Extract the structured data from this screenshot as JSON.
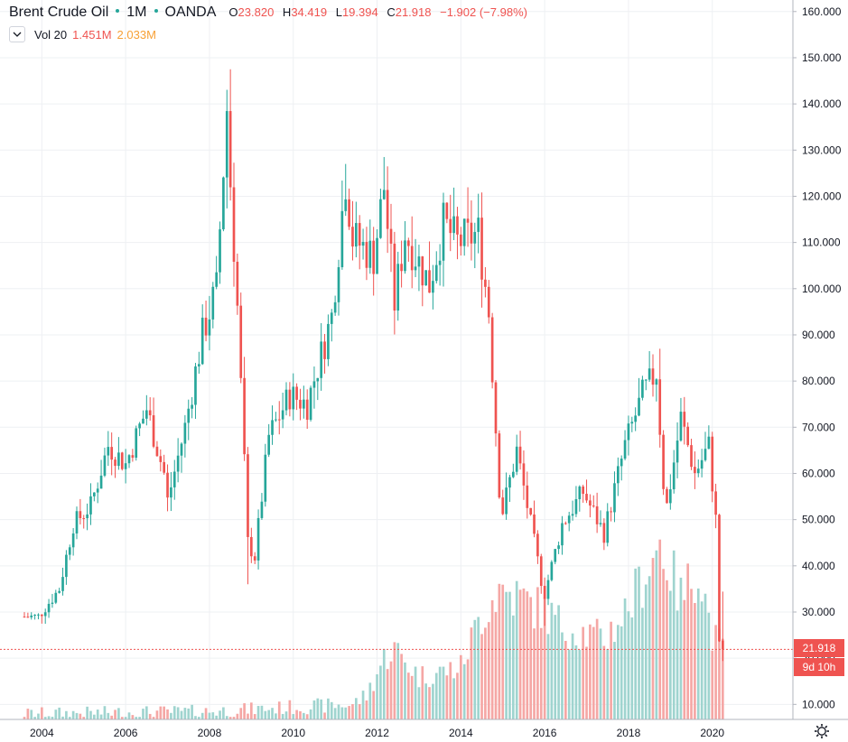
{
  "header": {
    "symbol": "Brent Crude Oil",
    "interval": "1M",
    "exchange": "OANDA",
    "o_key": "O",
    "o_val": "23.820",
    "h_key": "H",
    "h_val": "34.419",
    "l_key": "L",
    "l_val": "19.394",
    "c_key": "C",
    "c_val": "21.918",
    "change": "−1.902 (−7.98%)",
    "vol_label": "Vol 20",
    "vol_a": "1.451M",
    "vol_b": "2.033M"
  },
  "price_badge": {
    "price": "21.918",
    "countdown": "9d 10h"
  },
  "icons": [
    "chevron-down-icon",
    "gear-icon"
  ],
  "colors": {
    "up": "#26a69a",
    "down": "#ef5350",
    "vol_up": "#9fd4cf",
    "vol_down": "#f5a7a5",
    "grid": "#eef0f3"
  },
  "chart_data": {
    "type": "candlestick",
    "title": "Brent Crude Oil",
    "y_axis_ticks": [
      "10.000",
      "20.000",
      "30.000",
      "40.000",
      "50.000",
      "60.000",
      "70.000",
      "80.000",
      "90.000",
      "100.000",
      "110.000",
      "120.000",
      "130.000",
      "140.000",
      "150.000",
      "160.000"
    ],
    "x_axis_ticks": [
      "2004",
      "2006",
      "2008",
      "2010",
      "2012",
      "2014",
      "2016",
      "2018",
      "2020"
    ],
    "ylim": [
      7,
      162
    ],
    "last_close": 21.918,
    "last_candle": {
      "open": 23.82,
      "high": 34.419,
      "low": 19.394,
      "close": 21.918,
      "change": -1.902,
      "change_pct": -7.98
    },
    "monthly_close_anchors": [
      [
        "2003-08",
        29
      ],
      [
        "2003-12",
        29
      ],
      [
        "2004-06",
        35
      ],
      [
        "2004-10",
        49
      ],
      [
        "2005-03",
        53
      ],
      [
        "2005-08",
        66
      ],
      [
        "2006-01",
        62
      ],
      [
        "2006-07",
        74
      ],
      [
        "2006-12",
        60
      ],
      [
        "2007-01",
        54
      ],
      [
        "2007-06",
        70
      ],
      [
        "2007-11",
        90
      ],
      [
        "2008-03",
        100
      ],
      [
        "2008-06",
        139
      ],
      [
        "2008-07",
        123
      ],
      [
        "2008-09",
        96
      ],
      [
        "2008-12",
        45
      ],
      [
        "2009-02",
        42
      ],
      [
        "2009-06",
        68
      ],
      [
        "2009-12",
        77
      ],
      [
        "2010-05",
        75
      ],
      [
        "2010-12",
        94
      ],
      [
        "2011-04",
        124
      ],
      [
        "2011-06",
        111
      ],
      [
        "2011-12",
        107
      ],
      [
        "2012-03",
        122
      ],
      [
        "2012-06",
        97
      ],
      [
        "2012-09",
        112
      ],
      [
        "2013-04",
        101
      ],
      [
        "2013-08",
        114
      ],
      [
        "2013-12",
        110
      ],
      [
        "2014-06",
        112
      ],
      [
        "2014-09",
        95
      ],
      [
        "2014-12",
        57
      ],
      [
        "2015-01",
        52
      ],
      [
        "2015-05",
        65
      ],
      [
        "2015-08",
        53
      ],
      [
        "2015-12",
        37
      ],
      [
        "2016-01",
        34
      ],
      [
        "2016-06",
        49
      ],
      [
        "2016-12",
        56
      ],
      [
        "2017-06",
        47
      ],
      [
        "2017-12",
        66
      ],
      [
        "2018-05",
        77
      ],
      [
        "2018-09",
        82
      ],
      [
        "2018-11",
        58
      ],
      [
        "2018-12",
        53
      ],
      [
        "2019-04",
        72
      ],
      [
        "2019-08",
        60
      ],
      [
        "2019-12",
        66
      ],
      [
        "2020-01",
        58
      ],
      [
        "2020-02",
        50
      ],
      [
        "2020-03",
        23.82
      ],
      [
        "2020-04",
        21.918
      ]
    ],
    "highlights": [
      [
        "2008-07",
        147.5
      ],
      [
        "2008-12",
        36
      ],
      [
        "2011-04",
        127
      ],
      [
        "2012-03",
        128.5
      ],
      [
        "2016-01",
        27
      ],
      [
        "2018-10",
        87
      ],
      [
        "2020-04",
        19.394
      ]
    ],
    "volume": {
      "scale_note": "volume shown as bar heights in price-axis units",
      "anchors": [
        [
          "2003-08",
          8
        ],
        [
          "2008-01",
          8.5
        ],
        [
          "2011-06",
          10
        ],
        [
          "2011-10",
          12
        ],
        [
          "2012-03",
          20
        ],
        [
          "2012-06",
          22
        ],
        [
          "2013-01",
          16
        ],
        [
          "2014-01",
          18
        ],
        [
          "2014-06",
          28
        ],
        [
          "2014-12",
          35
        ],
        [
          "2015-06",
          33
        ],
        [
          "2016-01",
          30
        ],
        [
          "2016-06",
          27
        ],
        [
          "2017-06",
          24
        ],
        [
          "2018-01",
          31
        ],
        [
          "2018-10",
          45
        ],
        [
          "2019-04",
          33
        ],
        [
          "2019-09",
          40
        ],
        [
          "2020-01",
          25
        ],
        [
          "2020-04",
          22
        ]
      ]
    }
  }
}
